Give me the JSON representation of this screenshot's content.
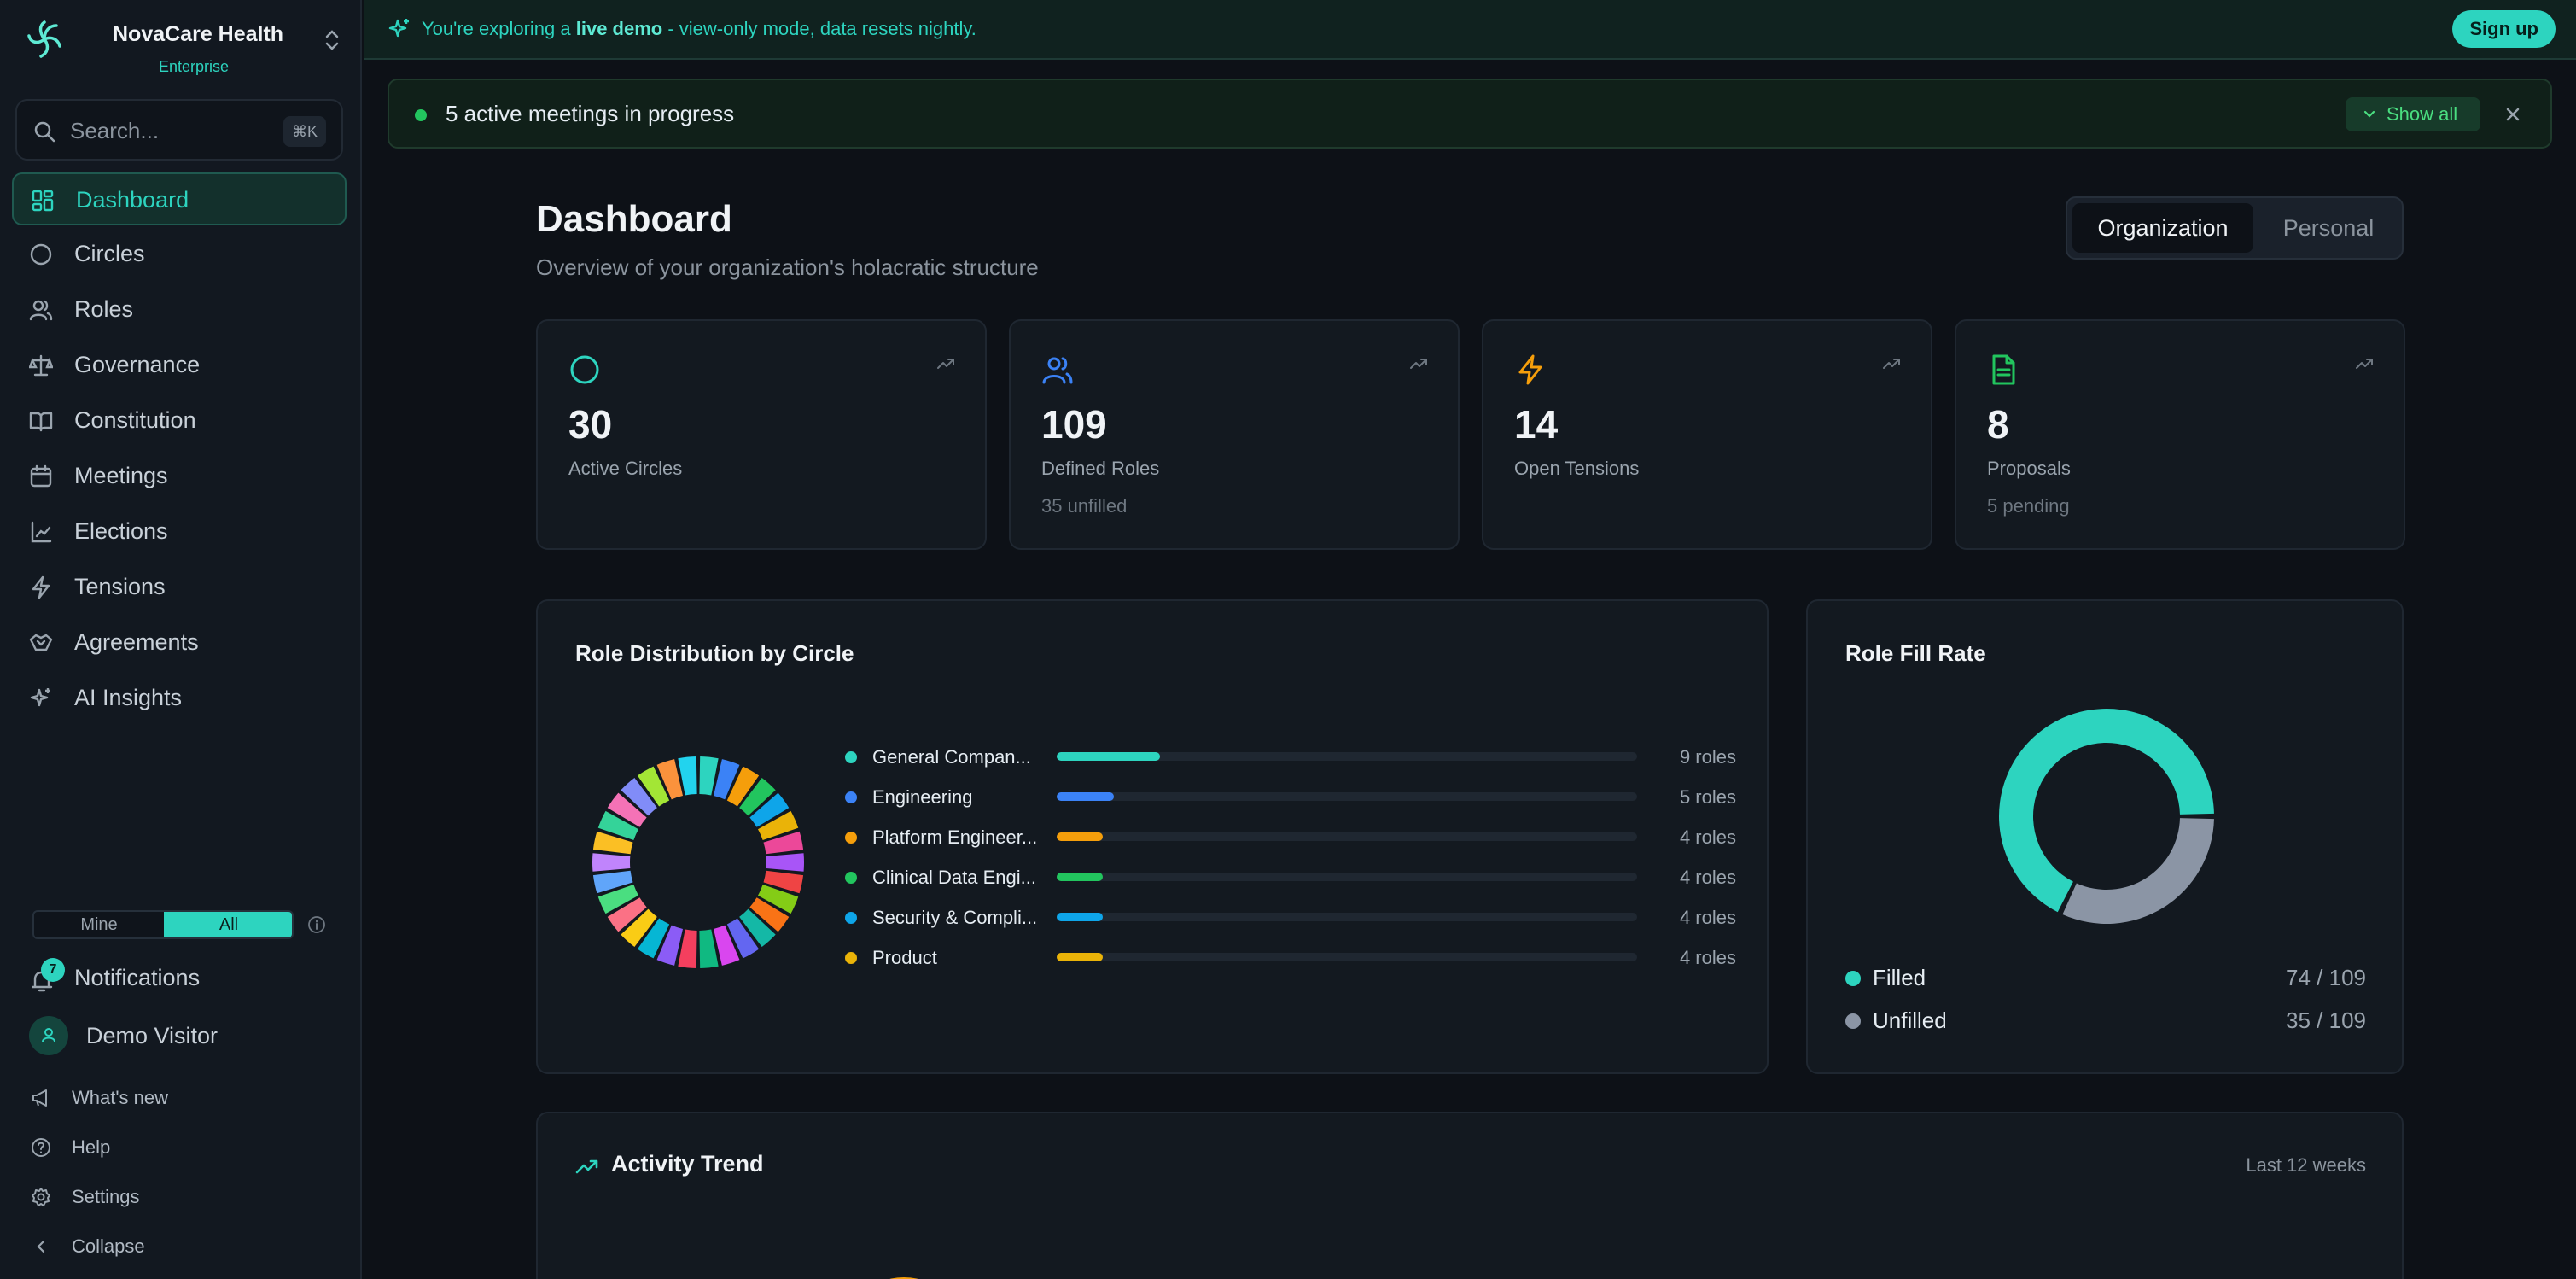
{
  "brand": {
    "name": "NovaCare Health",
    "plan": "Enterprise"
  },
  "search": {
    "placeholder": "Search...",
    "shortcut": "⌘K"
  },
  "nav": [
    {
      "label": "Dashboard",
      "icon": "dashboard-icon",
      "active": true
    },
    {
      "label": "Circles",
      "icon": "circle-icon"
    },
    {
      "label": "Roles",
      "icon": "users-icon"
    },
    {
      "label": "Governance",
      "icon": "scale-icon"
    },
    {
      "label": "Constitution",
      "icon": "book-icon"
    },
    {
      "label": "Meetings",
      "icon": "calendar-icon"
    },
    {
      "label": "Elections",
      "icon": "ballot-icon"
    },
    {
      "label": "Tensions",
      "icon": "lightning-icon"
    },
    {
      "label": "Agreements",
      "icon": "handshake-icon"
    },
    {
      "label": "AI Insights",
      "icon": "sparkle-icon"
    }
  ],
  "scope_toggle": {
    "mine": "Mine",
    "all": "All",
    "selected": "All"
  },
  "notifications": {
    "label": "Notifications",
    "count": "7"
  },
  "user": {
    "name": "Demo Visitor"
  },
  "footer": {
    "whats_new": "What's new",
    "help": "Help",
    "settings": "Settings",
    "collapse": "Collapse"
  },
  "demo_banner": {
    "prefix": "You're exploring a ",
    "highlight": "live demo",
    "suffix": " - view-only mode, data resets nightly.",
    "signup": "Sign up"
  },
  "meetings_alert": {
    "text": "5 active meetings in progress",
    "show_all": "Show all"
  },
  "header": {
    "title": "Dashboard",
    "subtitle": "Overview of your organization's holacratic structure"
  },
  "view_tabs": {
    "organization": "Organization",
    "personal": "Personal",
    "selected": "Organization"
  },
  "stats": [
    {
      "value": "30",
      "label": "Active Circles",
      "sub": "",
      "icon": "circle-icon",
      "color": "#2dd4bf"
    },
    {
      "value": "109",
      "label": "Defined Roles",
      "sub": "35 unfilled",
      "icon": "users-icon",
      "color": "#3b82f6"
    },
    {
      "value": "14",
      "label": "Open Tensions",
      "sub": "",
      "icon": "lightning-icon",
      "color": "#f59e0b"
    },
    {
      "value": "8",
      "label": "Proposals",
      "sub": "5 pending",
      "icon": "document-icon",
      "color": "#22c55e"
    }
  ],
  "role_distribution": {
    "title": "Role Distribution by Circle",
    "rows": [
      {
        "name": "General Compan...",
        "count": "9 roles",
        "value": 9,
        "color": "#2dd4bf"
      },
      {
        "name": "Engineering",
        "count": "5 roles",
        "value": 5,
        "color": "#3b82f6"
      },
      {
        "name": "Platform Engineer...",
        "count": "4 roles",
        "value": 4,
        "color": "#f59e0b"
      },
      {
        "name": "Clinical Data Engi...",
        "count": "4 roles",
        "value": 4,
        "color": "#22c55e"
      },
      {
        "name": "Security & Compli...",
        "count": "4 roles",
        "value": 4,
        "color": "#0ea5e9"
      },
      {
        "name": "Product",
        "count": "4 roles",
        "value": 4,
        "color": "#eab308"
      }
    ],
    "ring_colors": [
      "#2dd4bf",
      "#3b82f6",
      "#f59e0b",
      "#22c55e",
      "#0ea5e9",
      "#eab308",
      "#ec4899",
      "#a855f7",
      "#ef4444",
      "#84cc16",
      "#f97316",
      "#14b8a6",
      "#6366f1",
      "#d946ef",
      "#10b981",
      "#f43f5e",
      "#8b5cf6",
      "#06b6d4",
      "#facc15",
      "#fb7185",
      "#4ade80",
      "#60a5fa",
      "#c084fc",
      "#fbbf24",
      "#34d399",
      "#f472b6",
      "#818cf8",
      "#a3e635",
      "#fb923c",
      "#22d3ee"
    ]
  },
  "role_fill_rate": {
    "title": "Role Fill Rate",
    "filled": {
      "label": "Filled",
      "value": "74 / 109",
      "count": 74,
      "color": "#2dd4bf"
    },
    "unfilled": {
      "label": "Unfilled",
      "value": "35 / 109",
      "count": 35,
      "color": "#8b95a5"
    }
  },
  "activity_trend": {
    "title": "Activity Trend",
    "range": "Last 12 weeks"
  }
}
